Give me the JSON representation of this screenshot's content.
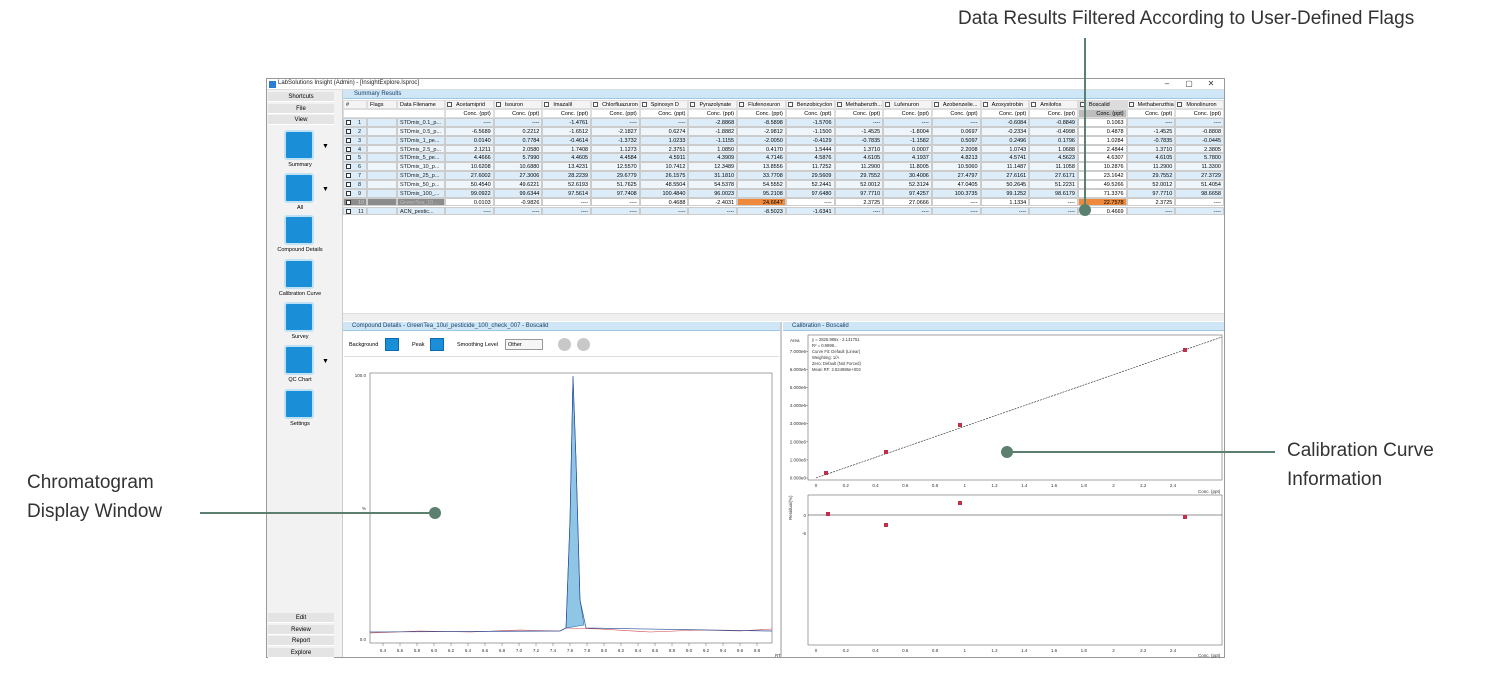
{
  "annotations": {
    "top": "Data Results Filtered According to User-Defined Flags",
    "right": [
      "Calibration Curve",
      "Information"
    ],
    "left": [
      "Chromatogram",
      "Display Window"
    ]
  },
  "window": {
    "title": "LabSolutions Insight (Admin) - [InsightExplore.lsproc]"
  },
  "sidebar": {
    "top": [
      "Shortcuts",
      "File",
      "View"
    ],
    "tools": [
      "Summary",
      "All",
      "Compound Details",
      "Calibration Curve",
      "Survey",
      "QC Chart",
      "Settings"
    ],
    "bottom": [
      "Edit",
      "Review",
      "Report",
      "Explore"
    ]
  },
  "summary": {
    "title": "Summary Results",
    "fixed_headers": [
      "#",
      "Flags",
      "Data Filename"
    ],
    "compounds": [
      "Acetamiprid",
      "Isouron",
      "Imazalil",
      "Chlorfluazuron",
      "Spinosyn D",
      "Pyrazolynate",
      "Flufenoxuron",
      "Benzobicyclon",
      "Methabenzth...",
      "Lufenuron",
      "Azobenzeile...",
      "Azoxystrobin",
      "Amilofos",
      "Boscalid",
      "Methabenzthiaz...",
      "Monolinuron"
    ],
    "unit": "Conc. (ppt)",
    "rows": [
      {
        "n": "1",
        "file": "STDmix_0.1_p...",
        "values": [
          "----",
          "----",
          "-1.4761",
          "----",
          "----",
          "-2.8868",
          "-8.5898",
          "-1.5706",
          "----",
          "----",
          "----",
          "-0.6084",
          "-0.8849",
          "0.1063",
          "----",
          "----"
        ]
      },
      {
        "n": "2",
        "file": "STDmix_0.5_p...",
        "values": [
          "-6.5689",
          "0.2212",
          "-1.6512",
          "-2.1827",
          "0.6274",
          "-1.8882",
          "-2.9812",
          "-1.1500",
          "-1.4525",
          "-1.8004",
          "0.0697",
          "-0.2334",
          "-0.4998",
          "0.4878",
          "-1.4525",
          "-0.8808"
        ]
      },
      {
        "n": "3",
        "file": "STDmix_1_pe...",
        "values": [
          "0.0140",
          "0.7784",
          "-0.4614",
          "-1.3732",
          "1.0233",
          "-1.1155",
          "-2.0050",
          "-0.4129",
          "-0.7835",
          "-1.1582",
          "0.5097",
          "0.2496",
          "0.1796",
          "1.0284",
          "-0.7835",
          "-0.0445"
        ]
      },
      {
        "n": "4",
        "file": "STDmix_2.5_p...",
        "values": [
          "2.1211",
          "2.0580",
          "1.7408",
          "1.1273",
          "2.3751",
          "1.0850",
          "0.4170",
          "1.5444",
          "1.3710",
          "0.0007",
          "2.2008",
          "1.0743",
          "1.0688",
          "2.4844",
          "1.3710",
          "2.3805"
        ]
      },
      {
        "n": "5",
        "file": "STDmix_5_pe...",
        "values": [
          "4.4666",
          "5.7990",
          "4.4605",
          "4.4584",
          "4.5911",
          "4.3909",
          "4.7146",
          "4.5876",
          "4.6105",
          "4.1937",
          "4.8213",
          "4.5741",
          "4.5623",
          "4.6307",
          "4.6105",
          "5.7800"
        ]
      },
      {
        "n": "6",
        "file": "STDmix_10_p...",
        "values": [
          "10.6208",
          "10.6880",
          "13.4231",
          "12.5570",
          "10.7412",
          "12.3489",
          "13.8556",
          "11.7252",
          "11.2900",
          "11.8005",
          "10.5060",
          "11.1487",
          "11.1058",
          "10.2876",
          "11.2900",
          "11.3300"
        ]
      },
      {
        "n": "7",
        "file": "STDmix_25_p...",
        "values": [
          "27.6002",
          "27.3006",
          "28.2239",
          "29.6779",
          "26.1575",
          "31.1810",
          "33.7708",
          "29.5609",
          "29.7552",
          "30.4006",
          "27.4797",
          "27.6161",
          "27.6171",
          "23.1642",
          "29.7552",
          "27.3729"
        ]
      },
      {
        "n": "8",
        "file": "STDmix_50_p...",
        "values": [
          "50.4540",
          "49.6221",
          "52.6193",
          "51.7625",
          "48.5504",
          "54.5378",
          "54.5552",
          "52.2441",
          "52.0012",
          "52.3124",
          "47.0405",
          "50.2645",
          "51.2231",
          "49.5266",
          "52.0012",
          "51.4054"
        ]
      },
      {
        "n": "9",
        "file": "STDmix_100_...",
        "values": [
          "99.0922",
          "99.6344",
          "97.5614",
          "97.7408",
          "100.4840",
          "96.0023",
          "95.2108",
          "97.6480",
          "97.7710",
          "97.4257",
          "100.3735",
          "99.1252",
          "98.6179",
          "71.3376",
          "97.7710",
          "98.6658"
        ]
      },
      {
        "n": "10",
        "file": "GreenTea_10...",
        "values": [
          "0.0103",
          "-0.9826",
          "----",
          "----",
          "0.4688",
          "-2.4031",
          "24.6647",
          "----",
          "2.3725",
          "27.0666",
          "----",
          "1.1334",
          "----",
          "22.7578",
          "2.3725",
          "----"
        ]
      },
      {
        "n": "11",
        "file": "ACN_pestic...",
        "values": [
          "----",
          "----",
          "----",
          "----",
          "----",
          "----",
          "-8.5023",
          "-1.6341",
          "----",
          "----",
          "----",
          "----",
          "----",
          "0.4669",
          "----",
          "----"
        ]
      }
    ]
  },
  "compound_details": {
    "title": "Compound Details - GreenTea_10ul_pesticide_100_check_007 - Boscalid",
    "background": "Background",
    "peak": "Peak",
    "smoothing": "Smoothing Level",
    "smoothing_value": "Other",
    "y_labels": [
      "100.0",
      "%",
      "0.0"
    ],
    "x_ticks": [
      "5.4",
      "5.6",
      "5.8",
      "6.0",
      "6.2",
      "6.4",
      "6.6",
      "6.8",
      "7.0",
      "7.2",
      "7.4",
      "7.6",
      "7.8",
      "8.0",
      "8.2",
      "8.4",
      "8.6",
      "8.8",
      "9.0",
      "9.2",
      "9.4",
      "9.6",
      "9.8"
    ],
    "x_label": "RT"
  },
  "calibration": {
    "title": "Calibration - Boscalid",
    "info": [
      "y = 2825.986x - 2.131751",
      "R² = 0.9999...",
      "Curve Fit: Default (Linear)",
      "Weighting: 1/A",
      "Zero: Default (Not Forced)",
      "Mean RF: 2.824986e+002"
    ],
    "y_label": "Area",
    "y_ticks": [
      "0.000e0",
      "1.000e6",
      "2.000e6",
      "3.000e6",
      "4.000e6",
      "5.000e6",
      "6.000e6",
      "7.000e6"
    ],
    "x_ticks": [
      "0",
      "0.2",
      "0.4",
      "0.6",
      "0.8",
      "1",
      "1.2",
      "1.4",
      "1.6",
      "1.8",
      "2",
      "2.2",
      "2.4"
    ],
    "x_label": "Conc. (ppt)",
    "residual_label": "Residual(%)",
    "residual_ticks": [
      "0",
      "-5"
    ]
  }
}
